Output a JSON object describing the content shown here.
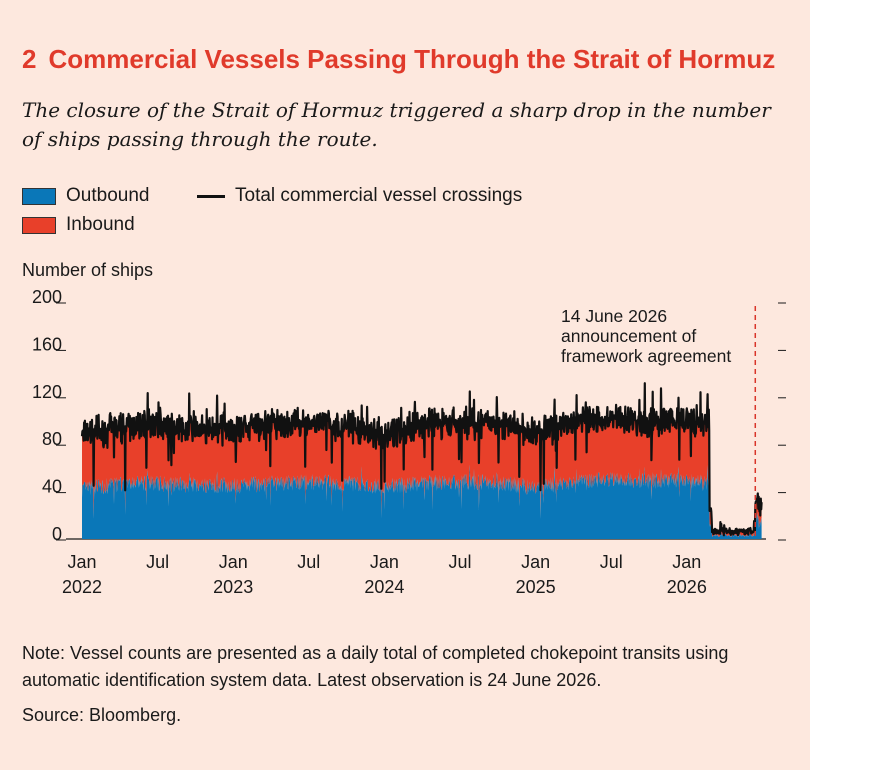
{
  "header": {
    "number": "2",
    "title": "Commercial Vessels Passing Through the Strait of Hormuz",
    "subtitle": "The closure of the Strait of Hormuz triggered a sharp drop in the number of ships passing through the route."
  },
  "legend": {
    "outbound": "Outbound",
    "inbound": "Inbound",
    "total": "Total commercial vessel crossings"
  },
  "colors": {
    "outbound": "#0a77b8",
    "inbound": "#e8402a",
    "total": "#111111",
    "annotation_line": "#d9352a",
    "background": "#fde8de"
  },
  "chart_data": {
    "type": "area",
    "ylabel": "Number of ships",
    "ylim": [
      0,
      200
    ],
    "yticks": [
      0,
      40,
      80,
      120,
      160,
      200
    ],
    "x_ticks": [
      {
        "label": "Jan",
        "year": "2022",
        "date": "2022-01"
      },
      {
        "label": "Jul",
        "year": "",
        "date": "2022-07"
      },
      {
        "label": "Jan",
        "year": "2023",
        "date": "2023-01"
      },
      {
        "label": "Jul",
        "year": "",
        "date": "2023-07"
      },
      {
        "label": "Jan",
        "year": "2024",
        "date": "2024-01"
      },
      {
        "label": "Jul",
        "year": "",
        "date": "2024-07"
      },
      {
        "label": "Jan",
        "year": "2025",
        "date": "2025-01"
      },
      {
        "label": "Jul",
        "year": "",
        "date": "2025-07"
      },
      {
        "label": "Jan",
        "year": "2026",
        "date": "2026-01"
      }
    ],
    "x_range": [
      "2022-01",
      "2026-06"
    ],
    "stacked": true,
    "series": [
      {
        "name": "Outbound",
        "x": [
          "2022-01",
          "2022-04",
          "2022-07",
          "2022-10",
          "2023-01",
          "2023-04",
          "2023-07",
          "2023-10",
          "2024-01",
          "2024-04",
          "2024-07",
          "2024-10",
          "2025-01",
          "2025-04",
          "2025-07",
          "2025-10",
          "2026-01",
          "2026-02",
          "2026-03",
          "2026-04",
          "2026-05",
          "2026-06"
        ],
        "values": [
          42,
          46,
          47,
          46,
          45,
          47,
          48,
          47,
          44,
          47,
          48,
          48,
          43,
          49,
          50,
          49,
          49,
          47,
          2,
          3,
          2,
          20
        ]
      },
      {
        "name": "Inbound",
        "x": [
          "2022-01",
          "2022-04",
          "2022-07",
          "2022-10",
          "2023-01",
          "2023-04",
          "2023-07",
          "2023-10",
          "2024-01",
          "2024-04",
          "2024-07",
          "2024-10",
          "2025-01",
          "2025-04",
          "2025-07",
          "2025-10",
          "2026-01",
          "2026-02",
          "2026-03",
          "2026-04",
          "2026-05",
          "2026-06"
        ],
        "values": [
          45,
          48,
          49,
          48,
          47,
          49,
          50,
          49,
          44,
          49,
          50,
          50,
          45,
          51,
          51,
          50,
          50,
          50,
          3,
          3,
          3,
          20
        ]
      },
      {
        "name": "Total commercial vessel crossings",
        "x": [
          "2022-01",
          "2022-04",
          "2022-07",
          "2022-10",
          "2023-01",
          "2023-04",
          "2023-07",
          "2023-10",
          "2024-01",
          "2024-04",
          "2024-07",
          "2024-10",
          "2025-01",
          "2025-04",
          "2025-07",
          "2025-10",
          "2026-01",
          "2026-02",
          "2026-03",
          "2026-04",
          "2026-05",
          "2026-06"
        ],
        "values": [
          87,
          94,
          96,
          94,
          92,
          96,
          98,
          96,
          88,
          96,
          98,
          98,
          88,
          100,
          101,
          99,
          99,
          97,
          5,
          6,
          5,
          40
        ]
      }
    ],
    "annotation": {
      "text_lines": [
        "14 June 2026",
        "announcement of",
        "framework agreement"
      ],
      "date": "2026-06-14"
    }
  },
  "footer": {
    "note": "Note: Vessel counts are presented as a daily total of completed chokepoint transits using automatic identification system data. Latest observation is 24 June 2026.",
    "source": "Source: Bloomberg."
  }
}
